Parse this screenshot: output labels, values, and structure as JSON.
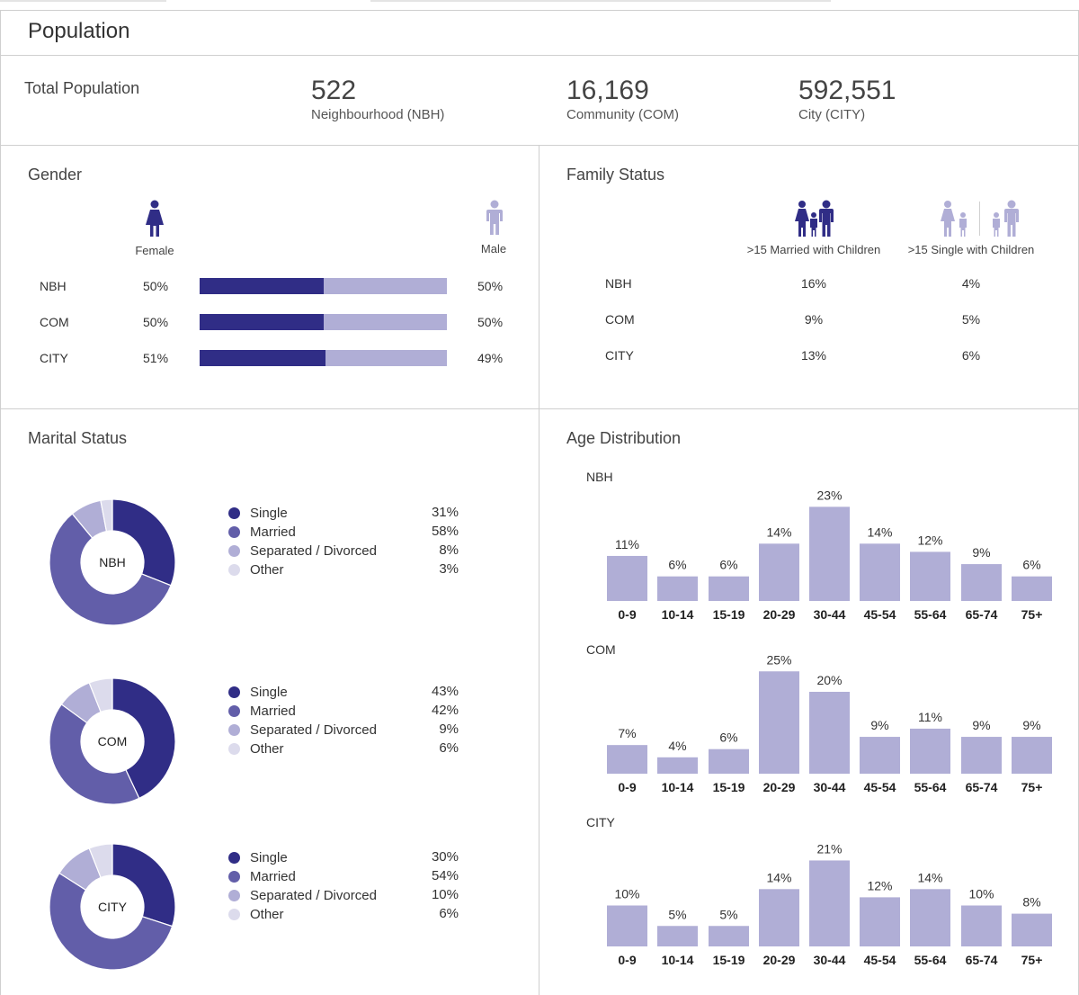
{
  "page": {
    "title": "Population"
  },
  "colors": {
    "dark": "#302d86",
    "mid": "#625ea9",
    "light": "#b0aed6",
    "lightest": "#dcdbec",
    "bar": "#b0aed6"
  },
  "total_population": {
    "label": "Total Population",
    "items": [
      {
        "value": "522",
        "label": "Neighbourhood (NBH)"
      },
      {
        "value": "16,169",
        "label": "Community (COM)"
      },
      {
        "value": "592,551",
        "label": "City (CITY)"
      }
    ]
  },
  "gender": {
    "title": "Gender",
    "female_label": "Female",
    "male_label": "Male",
    "female_icon": "female-person-icon",
    "male_icon": "male-person-icon",
    "rows": [
      {
        "region": "NBH",
        "female_pct": "50%",
        "male_pct": "50%",
        "female_value": 50
      },
      {
        "region": "COM",
        "female_pct": "50%",
        "male_pct": "50%",
        "female_value": 50
      },
      {
        "region": "CITY",
        "female_pct": "51%",
        "male_pct": "49%",
        "female_value": 51
      }
    ]
  },
  "family": {
    "title": "Family Status",
    "col1_label": ">15 Married with Children",
    "col2_label": ">15 Single with Children",
    "rows": [
      {
        "region": "NBH",
        "married": "16%",
        "single": "4%"
      },
      {
        "region": "COM",
        "married": "9%",
        "single": "5%"
      },
      {
        "region": "CITY",
        "married": "13%",
        "single": "6%"
      }
    ]
  },
  "marital": {
    "title": "Marital Status",
    "categories": [
      "Single",
      "Married",
      "Separated / Divorced",
      "Other"
    ],
    "regions": [
      {
        "region": "NBH",
        "pcts": [
          "31%",
          "58%",
          "8%",
          "3%"
        ],
        "values": [
          31,
          58,
          8,
          3
        ]
      },
      {
        "region": "COM",
        "pcts": [
          "43%",
          "42%",
          "9%",
          "6%"
        ],
        "values": [
          43,
          42,
          9,
          6
        ]
      },
      {
        "region": "CITY",
        "pcts": [
          "30%",
          "54%",
          "10%",
          "6%"
        ],
        "values": [
          30,
          54,
          10,
          6
        ]
      }
    ]
  },
  "age": {
    "title": "Age Distribution"
  },
  "chart_data": [
    {
      "type": "bar",
      "title": "NBH",
      "categories": [
        "0-9",
        "10-14",
        "15-19",
        "20-29",
        "30-44",
        "45-54",
        "55-64",
        "65-74",
        "75+"
      ],
      "values": [
        11,
        6,
        6,
        14,
        23,
        14,
        12,
        9,
        6
      ],
      "unit": "%"
    },
    {
      "type": "bar",
      "title": "COM",
      "categories": [
        "0-9",
        "10-14",
        "15-19",
        "20-29",
        "30-44",
        "45-54",
        "55-64",
        "65-74",
        "75+"
      ],
      "values": [
        7,
        4,
        6,
        25,
        20,
        9,
        11,
        9,
        9
      ],
      "unit": "%"
    },
    {
      "type": "bar",
      "title": "CITY",
      "categories": [
        "0-9",
        "10-14",
        "15-19",
        "20-29",
        "30-44",
        "45-54",
        "55-64",
        "65-74",
        "75+"
      ],
      "values": [
        10,
        5,
        5,
        14,
        21,
        12,
        14,
        10,
        8
      ],
      "unit": "%"
    }
  ]
}
